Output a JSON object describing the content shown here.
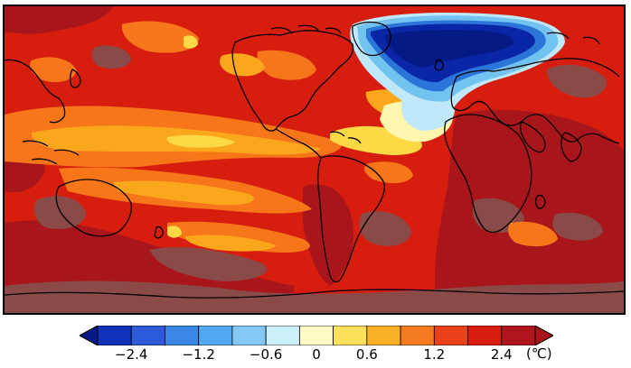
{
  "map": {
    "land_outline_color": "#000000",
    "palette": {
      "darkred": "#a8151a",
      "red": "#d71e0e",
      "orange_red": "#ef3d12",
      "orange": "#f7761a",
      "amber": "#fba71c",
      "yellow": "#fdd946",
      "pale_yellow": "#fff7b0",
      "muted": "#8a4a48",
      "pale_blue": "#bfe8fb",
      "light_blue": "#72c3f0",
      "blue": "#2b75d9",
      "navy": "#0a26a6",
      "darknavy": "#061a86"
    }
  },
  "colorbar": {
    "unit": "(℃)",
    "levels": [
      "#1230b8",
      "#2c5ad8",
      "#3c86e6",
      "#52a8f2",
      "#84c8f6",
      "#cdeefb",
      "#fffac8",
      "#fde15a",
      "#fbb127",
      "#f57b20",
      "#e9421a",
      "#d71e0e",
      "#b0141c"
    ],
    "end_low_color": "#061a86",
    "end_high_color": "#a8151a",
    "ticks": [
      "−2.4",
      "−1.2",
      "−0.6",
      "0",
      "0.6",
      "1.2",
      "2.4"
    ]
  }
}
